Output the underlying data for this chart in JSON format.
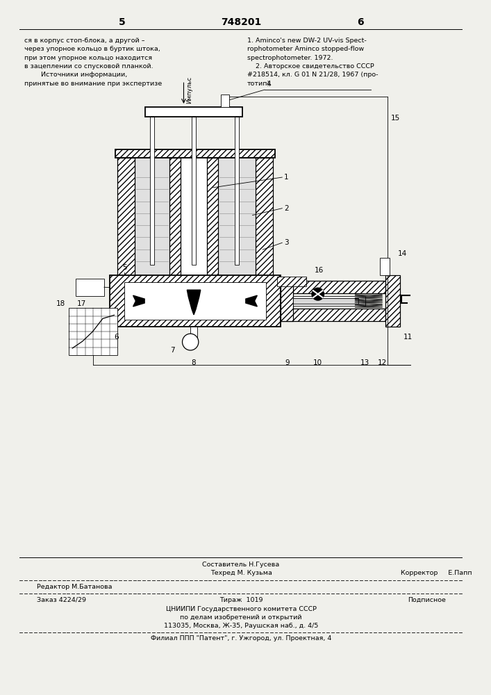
{
  "bg_color": "#f0f0eb",
  "page_width": 7.07,
  "page_height": 10.0,
  "header": {
    "left_num": "5",
    "center_num": "748201",
    "right_num": "6"
  },
  "top_left_text": [
    "ся в корпус стоп-блока, а другой –",
    "через упорное кольцо в буртик штока,",
    "при этом упорное кольцо находится",
    "в зацеплении со спусковой планкой.",
    "        Источники информации,",
    "принятые во внимание при экспертизе"
  ],
  "top_right_text": [
    "1. Aminco's new DW-2 UV-vis Spect-",
    "rophotometer Aminco stopped-flow",
    "spectrophotometer. 1972.",
    "    2. Авторское свидетельство СССР",
    "#218514, кл. G 01 N 21/28, 1967 (про-",
    "тотип)."
  ],
  "footer_center_top1": "Составитель Н.Гусева",
  "footer_center_top2": "Техред М. Кузьма",
  "footer_right_top": "Корректор     Е.Папп",
  "footer_left": "Редактор М.Батанова",
  "footer_order": "Заказ 4224/29",
  "footer_tirazh": "Тираж  1019",
  "footer_podpisnoe": "Подписное",
  "footer_org1": "ЦНИИПИ Государственного комитета СССР",
  "footer_org2": "по делам изобретений и открытий",
  "footer_org3": "113035, Москва, Ж-35, Раушская наб., д. 4/5",
  "footer_patent": "Филиал ППП \"Патент\", г. Ужгород, ул. Проектная, 4"
}
